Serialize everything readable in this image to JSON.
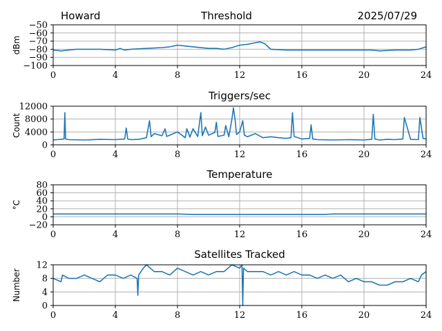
{
  "header": {
    "left": "Howard",
    "center": "Threshold",
    "right": "2025/07/29"
  },
  "colors": {
    "series": "#1f77b4",
    "grid": "#b0b0b0"
  },
  "chart_data": [
    {
      "type": "line",
      "title": "Threshold",
      "ylabel": "dBm",
      "xlim": [
        0,
        24
      ],
      "ylim": [
        -100,
        -50
      ],
      "xticks": [
        0,
        4,
        8,
        12,
        16,
        20,
        24
      ],
      "yticks": [
        -50,
        -60,
        -70,
        -80,
        -90,
        -100
      ],
      "yticklabels": [
        "−50",
        "−60",
        "−70",
        "−80",
        "−90",
        "−100"
      ],
      "grid": true,
      "x": [
        0,
        0.5,
        1,
        1.5,
        2,
        3,
        4,
        4.3,
        4.6,
        5,
        6,
        7,
        7.5,
        8,
        8.5,
        9,
        10,
        10.5,
        11,
        11.5,
        12,
        12.5,
        13,
        13.3,
        13.6,
        14,
        15,
        16,
        17,
        18,
        19,
        20,
        20.5,
        21,
        22,
        23,
        23.5,
        24
      ],
      "series": [
        {
          "values": [
            -81,
            -82,
            -81,
            -80,
            -80,
            -80,
            -81,
            -79,
            -81,
            -80,
            -79,
            -78,
            -77,
            -75,
            -76,
            -77,
            -79,
            -79,
            -80,
            -78,
            -75,
            -74,
            -72,
            -71,
            -73,
            -80,
            -81,
            -81,
            -81,
            -81,
            -81,
            -81,
            -81,
            -82,
            -81,
            -81,
            -80,
            -77
          ]
        }
      ]
    },
    {
      "type": "line",
      "title": "Triggers/sec",
      "ylabel": "Count",
      "xlim": [
        0,
        24
      ],
      "ylim": [
        0,
        12000
      ],
      "xticks": [
        0,
        4,
        8,
        12,
        16,
        20,
        24
      ],
      "yticks": [
        0,
        4000,
        8000,
        12000
      ],
      "yticklabels": [
        "0",
        "4000",
        "8000",
        "12000"
      ],
      "grid": true,
      "x": [
        0,
        0.7,
        0.75,
        0.8,
        1,
        2,
        3,
        4,
        4.6,
        4.7,
        4.8,
        5,
        5.5,
        6,
        6.2,
        6.3,
        6.5,
        7,
        7.2,
        7.3,
        7.5,
        8,
        8.5,
        8.6,
        8.8,
        9,
        9.3,
        9.5,
        9.6,
        9.8,
        10,
        10.4,
        10.5,
        10.6,
        11,
        11.1,
        11.3,
        11.5,
        11.6,
        11.7,
        11.8,
        12,
        12.2,
        12.3,
        12.5,
        13,
        13.5,
        14,
        14.5,
        15,
        15.3,
        15.4,
        15.5,
        16,
        16.5,
        16.6,
        16.7,
        17,
        18,
        19,
        20,
        20.5,
        20.6,
        20.7,
        21,
        21.5,
        22,
        22.5,
        22.6,
        23,
        23.5,
        23.6,
        23.8,
        24
      ],
      "series": [
        {
          "values": [
            1500,
            1800,
            10000,
            1800,
            1600,
            1500,
            1700,
            1600,
            1800,
            5200,
            1800,
            1600,
            1700,
            2200,
            7500,
            2500,
            3500,
            2800,
            5000,
            2600,
            3000,
            4000,
            2200,
            5000,
            2400,
            5000,
            2600,
            10000,
            2800,
            5500,
            3000,
            3800,
            7000,
            2600,
            3000,
            6000,
            2500,
            8000,
            11500,
            8000,
            3200,
            4000,
            7500,
            3000,
            2500,
            3500,
            2200,
            2500,
            2200,
            2000,
            2200,
            10000,
            2600,
            1800,
            2000,
            6200,
            1800,
            1600,
            1500,
            1600,
            1500,
            1700,
            9500,
            1800,
            1500,
            1700,
            1600,
            1800,
            8500,
            1700,
            1600,
            8500,
            2000,
            1800
          ]
        }
      ]
    },
    {
      "type": "line",
      "title": "Temperature",
      "ylabel": "°C",
      "xlim": [
        0,
        24
      ],
      "ylim": [
        -20,
        80
      ],
      "xticks": [
        0,
        4,
        8,
        12,
        16,
        20,
        24
      ],
      "yticks": [
        -20,
        0,
        20,
        40,
        60,
        80
      ],
      "yticklabels": [
        "−20",
        "0",
        "20",
        "40",
        "60",
        "80"
      ],
      "grid": true,
      "x": [
        0,
        4,
        8,
        9,
        12,
        16,
        17.5,
        18,
        20,
        24
      ],
      "series": [
        {
          "values": [
            7,
            7,
            7,
            6,
            6,
            6,
            6,
            7,
            7,
            7
          ]
        }
      ]
    },
    {
      "type": "line",
      "title": "Satellites Tracked",
      "ylabel": "Number",
      "xlim": [
        0,
        24
      ],
      "ylim": [
        0,
        12
      ],
      "xticks": [
        0,
        4,
        8,
        12,
        16,
        20,
        24
      ],
      "yticks": [
        0,
        4,
        8,
        12
      ],
      "yticklabels": [
        "0",
        "4",
        "8",
        "12"
      ],
      "grid": true,
      "x": [
        0,
        0.5,
        0.6,
        1,
        1.5,
        2,
        2.5,
        3,
        3.5,
        4,
        4.5,
        5,
        5.4,
        5.45,
        5.5,
        5.8,
        6,
        6.5,
        7,
        7.5,
        8,
        8.5,
        9,
        9.5,
        10,
        10.5,
        11,
        11.5,
        12,
        12.15,
        12.2,
        12.25,
        12.5,
        13,
        13.5,
        14,
        14.5,
        15,
        15.5,
        16,
        16.5,
        17,
        17.5,
        18,
        18.5,
        19,
        19.5,
        20,
        20.5,
        21,
        21.5,
        22,
        22.5,
        23,
        23.5,
        23.7,
        24
      ],
      "series": [
        {
          "values": [
            8,
            7,
            9,
            8,
            8,
            9,
            8,
            7,
            9,
            9,
            8,
            9,
            8,
            3,
            9,
            11,
            12,
            10,
            10,
            9,
            11,
            10,
            9,
            10,
            9,
            10,
            10,
            12,
            11,
            12,
            0,
            11,
            10,
            10,
            10,
            9,
            10,
            9,
            10,
            9,
            9,
            8,
            9,
            8,
            9,
            7,
            8,
            7,
            7,
            6,
            6,
            7,
            7,
            8,
            7,
            9,
            10
          ]
        }
      ]
    }
  ]
}
